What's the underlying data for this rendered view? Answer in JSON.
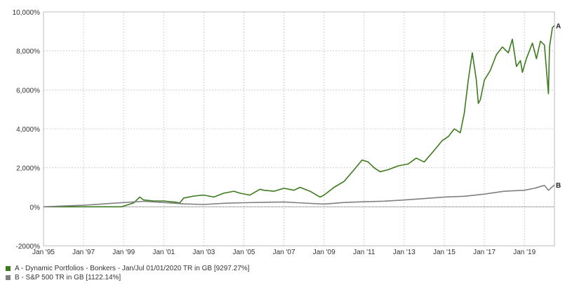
{
  "chart_data": {
    "type": "line",
    "ylim": [
      -2000,
      10000
    ],
    "y_ticks": [
      "10,000%",
      "8,000%",
      "6,000%",
      "4,000%",
      "2,000%",
      "0%",
      "-2000%"
    ],
    "y_tick_values": [
      10000,
      8000,
      6000,
      4000,
      2000,
      0,
      -2000
    ],
    "x_ticks": [
      "Jan '95",
      "Jan '97",
      "Jan '99",
      "Jan '01",
      "Jan '03",
      "Jan '05",
      "Jan '07",
      "Jan '09",
      "Jan '11",
      "Jan '13",
      "Jan '15",
      "Jan '17",
      "Jan '19"
    ],
    "x_tick_values": [
      1995,
      1997,
      1999,
      2001,
      2003,
      2005,
      2007,
      2009,
      2011,
      2013,
      2015,
      2017,
      2019
    ],
    "xlim": [
      1995.0,
      2020.5
    ],
    "grid": true,
    "legend_position": "bottom-left",
    "series": [
      {
        "name": "A",
        "legend": "A - Dynamic Portfolios - Bonkers - Jan/Jul 01/01/2020 TR in GB [9297.27%]",
        "color": "#3d7a1e",
        "x": [
          1995.0,
          1998.9,
          1999.5,
          1999.8,
          2000.0,
          2000.5,
          2001.0,
          2001.5,
          2001.8,
          2002.0,
          2002.5,
          2003.0,
          2003.5,
          2004.0,
          2004.5,
          2004.8,
          2005.3,
          2005.8,
          2006.0,
          2006.5,
          2007.0,
          2007.5,
          2007.8,
          2008.3,
          2008.8,
          2009.0,
          2009.5,
          2010.0,
          2010.5,
          2010.9,
          2011.2,
          2011.5,
          2011.8,
          2012.2,
          2012.7,
          2013.2,
          2013.6,
          2014.0,
          2014.5,
          2014.9,
          2015.2,
          2015.5,
          2015.8,
          2016.0,
          2016.2,
          2016.4,
          2016.6,
          2016.7,
          2016.8,
          2017.0,
          2017.3,
          2017.6,
          2017.9,
          2018.2,
          2018.4,
          2018.6,
          2018.8,
          2018.9,
          2019.1,
          2019.4,
          2019.6,
          2019.8,
          2020.0,
          2020.2,
          2020.25,
          2020.4,
          2020.5
        ],
        "values": [
          0,
          0,
          200,
          500,
          350,
          300,
          300,
          250,
          200,
          450,
          550,
          600,
          500,
          700,
          800,
          700,
          600,
          900,
          850,
          800,
          950,
          850,
          1000,
          800,
          500,
          600,
          1000,
          1300,
          1900,
          2400,
          2300,
          2000,
          1800,
          1900,
          2100,
          2200,
          2500,
          2300,
          2900,
          3400,
          3600,
          4000,
          3800,
          4800,
          6500,
          7900,
          6500,
          5300,
          5500,
          6500,
          7000,
          7800,
          8200,
          7900,
          8600,
          7200,
          7500,
          6900,
          7600,
          8400,
          7600,
          8500,
          8300,
          5800,
          8200,
          9200,
          9297
        ]
      },
      {
        "name": "B",
        "legend": "B - S&P 500 TR in GB [1122.14%]",
        "color": "#808080",
        "x": [
          1995.0,
          1996.0,
          1997.0,
          1998.0,
          1999.0,
          2000.0,
          2001.0,
          2002.0,
          2003.0,
          2004.0,
          2005.0,
          2006.0,
          2007.0,
          2008.0,
          2009.0,
          2010.0,
          2011.0,
          2012.0,
          2013.0,
          2014.0,
          2015.0,
          2016.0,
          2017.0,
          2018.0,
          2019.0,
          2019.5,
          2020.0,
          2020.2,
          2020.5
        ],
        "values": [
          0,
          40,
          80,
          150,
          220,
          280,
          220,
          150,
          120,
          180,
          210,
          230,
          250,
          190,
          140,
          220,
          260,
          290,
          350,
          420,
          500,
          540,
          650,
          800,
          850,
          950,
          1100,
          850,
          1122
        ]
      }
    ]
  }
}
